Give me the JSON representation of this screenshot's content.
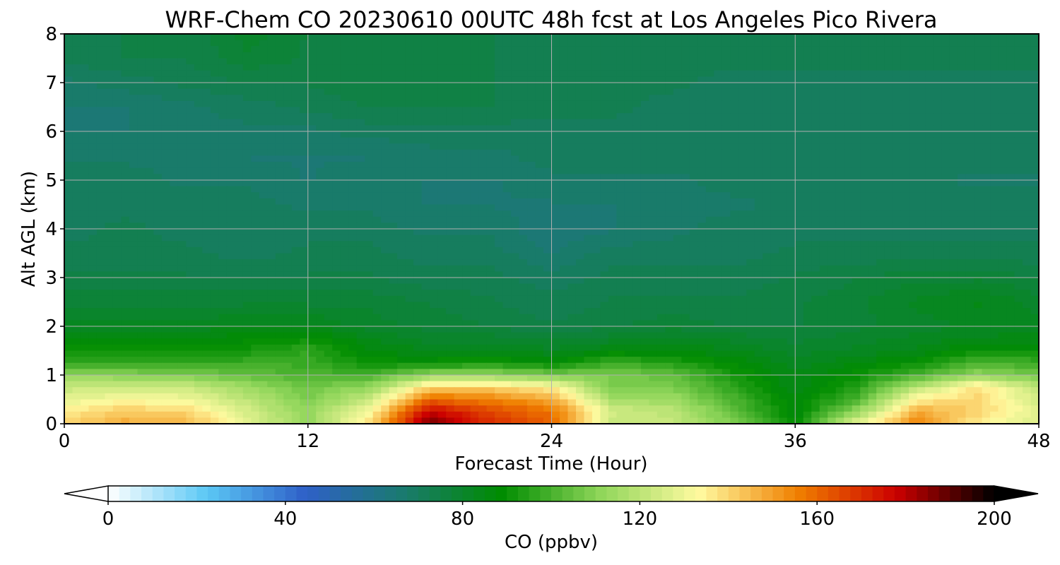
{
  "chart_data": {
    "type": "heatmap",
    "title": "WRF-Chem CO  20230610 00UTC 48h fcst at Los Angeles Pico Rivera",
    "xlabel": "Forecast Time (Hour)",
    "ylabel": "Alt AGL (km)",
    "xlim": [
      0,
      48
    ],
    "ylim": [
      0,
      8
    ],
    "x_ticks": [
      0,
      12,
      24,
      36,
      48
    ],
    "y_ticks": [
      0,
      1,
      2,
      3,
      4,
      5,
      6,
      7,
      8
    ],
    "grid": true,
    "x": [
      0,
      3,
      6,
      9,
      12,
      15,
      18,
      21,
      24,
      27,
      30,
      33,
      36,
      39,
      42,
      45,
      48
    ],
    "y": [
      0,
      0.25,
      0.5,
      0.75,
      1,
      1.25,
      1.5,
      1.75,
      2,
      2.5,
      3,
      3.5,
      4,
      4.5,
      5,
      5.5,
      6,
      6.5,
      7,
      7.5,
      8
    ],
    "z": [
      [
        140,
        148,
        146,
        128,
        112,
        138,
        190,
        170,
        160,
        120,
        122,
        108,
        88,
        128,
        155,
        135,
        125
      ],
      [
        136,
        142,
        140,
        125,
        112,
        132,
        178,
        165,
        158,
        125,
        120,
        104,
        86,
        112,
        148,
        140,
        128
      ],
      [
        128,
        132,
        130,
        120,
        108,
        122,
        160,
        155,
        148,
        115,
        114,
        100,
        86,
        100,
        135,
        140,
        124
      ],
      [
        122,
        124,
        124,
        114,
        106,
        112,
        140,
        140,
        135,
        108,
        108,
        96,
        84,
        94,
        120,
        138,
        120
      ],
      [
        112,
        110,
        108,
        104,
        100,
        100,
        112,
        112,
        108,
        108,
        104,
        92,
        84,
        90,
        100,
        112,
        106
      ],
      [
        96,
        96,
        96,
        98,
        98,
        90,
        90,
        92,
        88,
        98,
        94,
        88,
        82,
        86,
        90,
        100,
        98
      ],
      [
        90,
        90,
        90,
        92,
        96,
        86,
        84,
        84,
        82,
        86,
        86,
        84,
        80,
        82,
        84,
        90,
        90
      ],
      [
        86,
        86,
        86,
        88,
        90,
        84,
        80,
        80,
        78,
        80,
        82,
        80,
        78,
        80,
        82,
        84,
        85
      ],
      [
        82,
        82,
        82,
        84,
        84,
        80,
        78,
        76,
        74,
        76,
        78,
        76,
        76,
        78,
        80,
        82,
        82
      ],
      [
        78,
        78,
        78,
        78,
        78,
        78,
        76,
        74,
        72,
        74,
        74,
        74,
        76,
        78,
        82,
        84,
        80
      ],
      [
        74,
        74,
        74,
        74,
        74,
        74,
        72,
        72,
        70,
        72,
        72,
        72,
        74,
        76,
        78,
        78,
        76
      ],
      [
        72,
        72,
        72,
        70,
        72,
        72,
        70,
        70,
        66,
        70,
        70,
        70,
        72,
        72,
        72,
        72,
        72
      ],
      [
        70,
        72,
        70,
        70,
        70,
        70,
        68,
        68,
        64,
        66,
        68,
        70,
        70,
        70,
        70,
        70,
        70
      ],
      [
        70,
        70,
        70,
        70,
        68,
        68,
        66,
        66,
        66,
        66,
        68,
        68,
        70,
        70,
        70,
        70,
        70
      ],
      [
        70,
        70,
        68,
        68,
        66,
        68,
        66,
        66,
        68,
        68,
        68,
        70,
        70,
        70,
        70,
        68,
        68
      ],
      [
        68,
        68,
        68,
        66,
        66,
        66,
        68,
        68,
        70,
        70,
        70,
        70,
        70,
        70,
        70,
        70,
        70
      ],
      [
        66,
        66,
        68,
        68,
        68,
        70,
        70,
        70,
        70,
        70,
        70,
        70,
        70,
        70,
        70,
        70,
        70
      ],
      [
        66,
        66,
        68,
        70,
        72,
        74,
        74,
        74,
        72,
        72,
        70,
        70,
        70,
        70,
        70,
        70,
        70
      ],
      [
        68,
        70,
        72,
        74,
        74,
        76,
        76,
        74,
        72,
        72,
        72,
        70,
        70,
        70,
        70,
        70,
        70
      ],
      [
        72,
        74,
        74,
        78,
        76,
        76,
        74,
        74,
        72,
        72,
        72,
        72,
        72,
        72,
        72,
        72,
        72
      ],
      [
        72,
        74,
        74,
        80,
        76,
        76,
        74,
        74,
        72,
        72,
        72,
        72,
        72,
        72,
        72,
        72,
        72
      ]
    ],
    "colorbar": {
      "label": "CO  (ppbv)",
      "range": [
        0,
        200
      ],
      "ticks": [
        0,
        40,
        80,
        120,
        160,
        200
      ],
      "extend": "both",
      "colors": [
        "#ffffff",
        "#5bc8f5",
        "#2f60c8",
        "#1a7a6e",
        "#008c00",
        "#8fd65a",
        "#fffaa0",
        "#f08000",
        "#cc0000",
        "#000000"
      ]
    }
  }
}
